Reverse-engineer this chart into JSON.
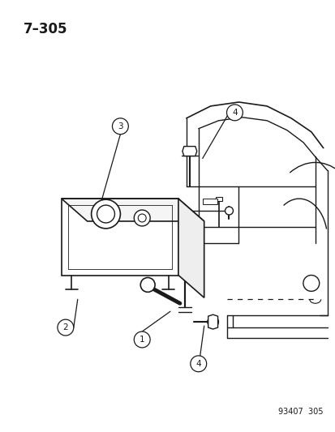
{
  "title_label": "7–305",
  "part_number": "93407  305",
  "background_color": "#ffffff",
  "line_color": "#1a1a1a",
  "figsize": [
    4.14,
    5.33
  ],
  "dpi": 100
}
